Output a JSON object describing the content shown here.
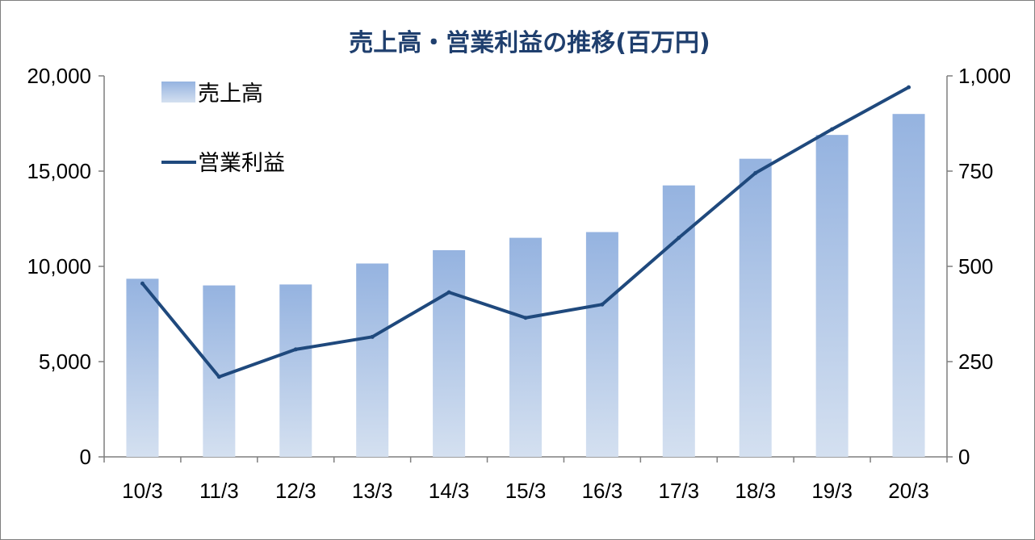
{
  "colors": {
    "title": "#1f3f6e",
    "line": "#1f497d",
    "bar_top": "#95b3e0",
    "bar_bottom": "#d4e0f0",
    "axis": "#7f7f7f"
  },
  "chart_data": {
    "type": "bar",
    "title": "売上高・営業利益の推移(百万円)",
    "categories": [
      "10/3",
      "11/3",
      "12/3",
      "13/3",
      "14/3",
      "15/3",
      "16/3",
      "17/3",
      "18/3",
      "19/3",
      "20/3"
    ],
    "series": [
      {
        "name": "売上高",
        "type": "bar",
        "axis": "left",
        "values": [
          9350,
          9000,
          9050,
          10150,
          10850,
          11500,
          11800,
          14250,
          15650,
          16900,
          18000
        ]
      },
      {
        "name": "営業利益",
        "type": "line",
        "axis": "right",
        "values": [
          455,
          210,
          282,
          315,
          432,
          365,
          400,
          575,
          745,
          860,
          970
        ]
      }
    ],
    "y_left": {
      "min": 0,
      "max": 20000,
      "ticks": [
        "0",
        "5,000",
        "10,000",
        "15,000",
        "20,000"
      ]
    },
    "y_right": {
      "min": 0,
      "max": 1000,
      "ticks": [
        "0",
        "250",
        "500",
        "750",
        "1,000"
      ]
    },
    "grid": false,
    "legend_position": "top-left"
  }
}
